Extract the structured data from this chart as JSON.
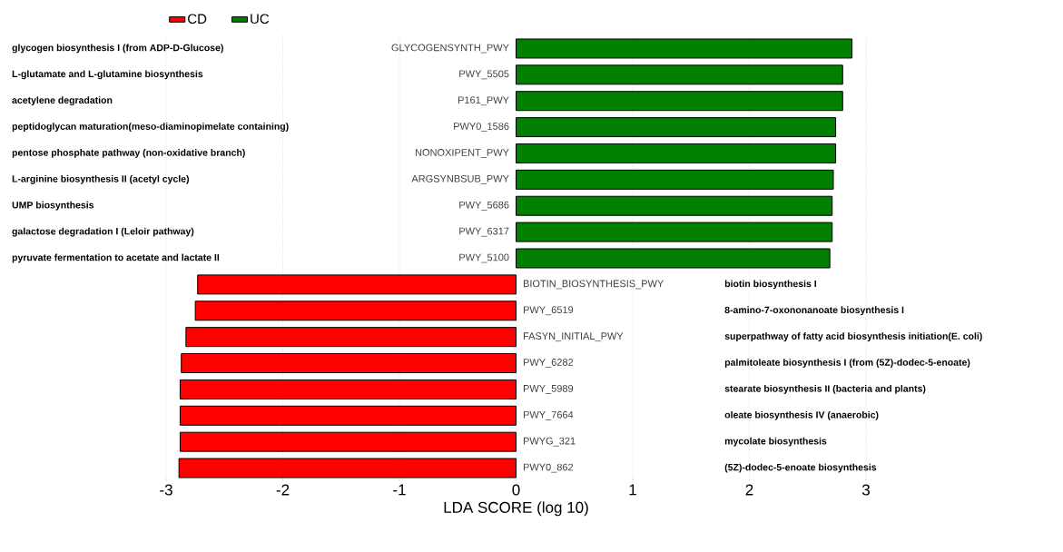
{
  "chart_data": {
    "type": "bar",
    "orientation": "horizontal",
    "xlabel": "LDA SCORE (log 10)",
    "categories": [
      "GLYCOGENSYNTH_PWY",
      "PWY_5505",
      "P161_PWY",
      "PWY0_1586",
      "NONOXIPENT_PWY",
      "ARGSYNBSUB_PWY",
      "PWY_5686",
      "PWY_6317",
      "PWY_5100",
      "BIOTIN_BIOSYNTHESIS_PWY",
      "PWY_6519",
      "FASYN_INITIAL_PWY",
      "PWY_6282",
      "PWY_5989",
      "PWY_7664",
      "PWYG_321",
      "PWY0_862"
    ],
    "series": [
      {
        "name": "CD",
        "color": "#ff0000",
        "values": [
          null,
          null,
          null,
          null,
          null,
          null,
          null,
          null,
          null,
          -2.73,
          -2.75,
          -2.83,
          -2.87,
          -2.88,
          -2.88,
          -2.88,
          -2.89
        ]
      },
      {
        "name": "UC",
        "color": "#007f00",
        "values": [
          2.88,
          2.8,
          2.8,
          2.74,
          2.74,
          2.72,
          2.71,
          2.71,
          2.69,
          null,
          null,
          null,
          null,
          null,
          null,
          null,
          null
        ]
      }
    ],
    "annotations": [
      "glycogen biosynthesis I (from ADP-D-Glucose)",
      "L-glutamate and L-glutamine biosynthesis",
      "acetylene degradation",
      "peptidoglycan maturation(meso-diaminopimelate containing)",
      "pentose phosphate pathway (non-oxidative branch)",
      "L-arginine biosynthesis II (acetyl cycle)",
      "UMP biosynthesis",
      "galactose degradation I (Leloir pathway)",
      "pyruvate fermentation to acetate and lactate II",
      "biotin biosynthesis I",
      "8-amino-7-oxononanoate biosynthesis I",
      "superpathway of fatty acid biosynthesis initiation(E. coli)",
      "palmitoleate biosynthesis I (from (5Z)-dodec-5-enoate)",
      "stearate biosynthesis II (bacteria and plants)",
      "oleate biosynthesis IV (anaerobic)",
      "mycolate biosynthesis",
      "(5Z)-dodec-5-enoate biosynthesis"
    ],
    "xlim": [
      -3,
      3
    ],
    "xticks": [
      -3,
      -2,
      -1,
      0,
      1,
      2,
      3
    ],
    "grid": "x",
    "legend": "top left"
  }
}
